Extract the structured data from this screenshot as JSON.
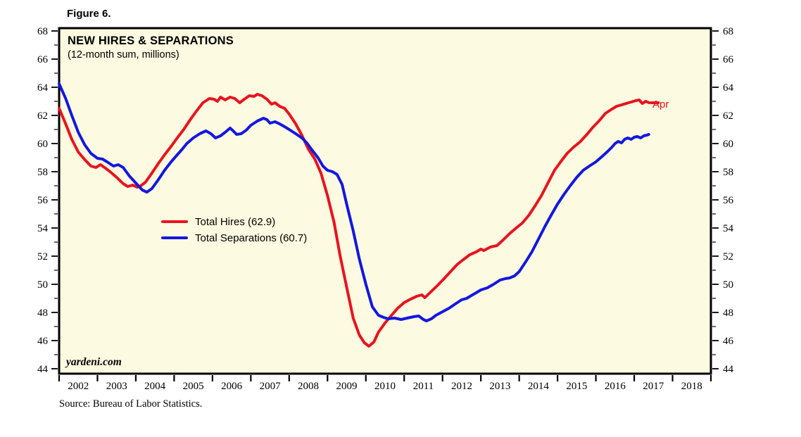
{
  "figure_label": "Figure 6.",
  "source_note": "Source: Bureau of Labor Statistics.",
  "chart_data": {
    "type": "line",
    "title": "NEW HIRES & SEPARATIONS",
    "subtitle": "(12-month sum, millions)",
    "watermark": "yardeni.com",
    "legend_position": "inside-left-middle",
    "grid": false,
    "colors": {
      "hires": "#E8141E",
      "separations": "#1418DE",
      "plot_background": "#FCFAE1",
      "frame": "#000000"
    },
    "x_axis": {
      "start": 2002,
      "end": 2019,
      "year_labels": [
        2002,
        2003,
        2004,
        2005,
        2006,
        2007,
        2008,
        2009,
        2010,
        2011,
        2012,
        2013,
        2014,
        2015,
        2016,
        2017,
        2018
      ]
    },
    "y_axis": {
      "min": 44,
      "max": 68,
      "major_step": 2,
      "minor_step": 1,
      "label_values": [
        68,
        66,
        64,
        62,
        60,
        58,
        56,
        54,
        52,
        50,
        48,
        46,
        44
      ]
    },
    "legend": [
      {
        "label": "Total Hires (62.9)",
        "color": "#E8141E"
      },
      {
        "label": "Total Separations (60.7)",
        "color": "#1418DE"
      }
    ],
    "annotations": [
      {
        "text": "Apr",
        "series": "Total Hires",
        "position": "line-end"
      }
    ],
    "latest_values": {
      "total_hires": 62.9,
      "total_separations": 60.7
    },
    "series": [
      {
        "name": "Total Hires",
        "color": "#E8141E",
        "points": [
          [
            2002.0,
            62.5
          ],
          [
            2002.17,
            61.4
          ],
          [
            2002.33,
            60.3
          ],
          [
            2002.5,
            59.4
          ],
          [
            2002.67,
            58.85
          ],
          [
            2002.83,
            58.4
          ],
          [
            2002.96,
            58.3
          ],
          [
            2003.08,
            58.5
          ],
          [
            2003.21,
            58.25
          ],
          [
            2003.33,
            58.0
          ],
          [
            2003.5,
            57.6
          ],
          [
            2003.67,
            57.15
          ],
          [
            2003.79,
            56.95
          ],
          [
            2003.92,
            57.05
          ],
          [
            2004.04,
            56.9
          ],
          [
            2004.13,
            57.0
          ],
          [
            2004.25,
            57.25
          ],
          [
            2004.42,
            57.9
          ],
          [
            2004.58,
            58.55
          ],
          [
            2004.75,
            59.2
          ],
          [
            2004.92,
            59.8
          ],
          [
            2005.08,
            60.4
          ],
          [
            2005.25,
            61.0
          ],
          [
            2005.42,
            61.7
          ],
          [
            2005.58,
            62.3
          ],
          [
            2005.75,
            62.9
          ],
          [
            2005.92,
            63.2
          ],
          [
            2006.04,
            63.15
          ],
          [
            2006.13,
            63.0
          ],
          [
            2006.21,
            63.3
          ],
          [
            2006.33,
            63.1
          ],
          [
            2006.46,
            63.3
          ],
          [
            2006.58,
            63.2
          ],
          [
            2006.71,
            62.9
          ],
          [
            2006.83,
            63.15
          ],
          [
            2006.96,
            63.4
          ],
          [
            2007.08,
            63.35
          ],
          [
            2007.17,
            63.5
          ],
          [
            2007.29,
            63.4
          ],
          [
            2007.42,
            63.15
          ],
          [
            2007.54,
            62.8
          ],
          [
            2007.63,
            62.9
          ],
          [
            2007.75,
            62.65
          ],
          [
            2007.88,
            62.5
          ],
          [
            2008.0,
            62.1
          ],
          [
            2008.17,
            61.4
          ],
          [
            2008.33,
            60.6
          ],
          [
            2008.5,
            59.6
          ],
          [
            2008.67,
            58.9
          ],
          [
            2008.83,
            57.9
          ],
          [
            2009.0,
            56.3
          ],
          [
            2009.17,
            54.4
          ],
          [
            2009.33,
            52.0
          ],
          [
            2009.5,
            49.8
          ],
          [
            2009.67,
            47.6
          ],
          [
            2009.83,
            46.4
          ],
          [
            2009.96,
            45.85
          ],
          [
            2010.08,
            45.6
          ],
          [
            2010.21,
            45.9
          ],
          [
            2010.33,
            46.6
          ],
          [
            2010.5,
            47.25
          ],
          [
            2010.67,
            47.8
          ],
          [
            2010.83,
            48.3
          ],
          [
            2011.0,
            48.7
          ],
          [
            2011.17,
            48.95
          ],
          [
            2011.33,
            49.15
          ],
          [
            2011.46,
            49.25
          ],
          [
            2011.54,
            49.05
          ],
          [
            2011.71,
            49.5
          ],
          [
            2011.88,
            49.95
          ],
          [
            2012.04,
            50.4
          ],
          [
            2012.21,
            50.9
          ],
          [
            2012.38,
            51.4
          ],
          [
            2012.54,
            51.75
          ],
          [
            2012.71,
            52.1
          ],
          [
            2012.88,
            52.3
          ],
          [
            2013.0,
            52.5
          ],
          [
            2013.08,
            52.4
          ],
          [
            2013.25,
            52.65
          ],
          [
            2013.42,
            52.75
          ],
          [
            2013.58,
            53.15
          ],
          [
            2013.75,
            53.6
          ],
          [
            2013.92,
            54.0
          ],
          [
            2014.08,
            54.35
          ],
          [
            2014.25,
            54.9
          ],
          [
            2014.42,
            55.6
          ],
          [
            2014.58,
            56.3
          ],
          [
            2014.75,
            57.2
          ],
          [
            2014.92,
            58.1
          ],
          [
            2015.08,
            58.7
          ],
          [
            2015.25,
            59.3
          ],
          [
            2015.42,
            59.75
          ],
          [
            2015.58,
            60.1
          ],
          [
            2015.75,
            60.6
          ],
          [
            2015.92,
            61.15
          ],
          [
            2016.08,
            61.6
          ],
          [
            2016.25,
            62.15
          ],
          [
            2016.42,
            62.45
          ],
          [
            2016.54,
            62.65
          ],
          [
            2016.67,
            62.75
          ],
          [
            2016.79,
            62.85
          ],
          [
            2016.92,
            62.95
          ],
          [
            2017.04,
            63.05
          ],
          [
            2017.13,
            63.1
          ],
          [
            2017.21,
            62.85
          ],
          [
            2017.3,
            63.0
          ],
          [
            2017.39,
            62.9
          ]
        ]
      },
      {
        "name": "Total Separations",
        "color": "#1418DE",
        "points": [
          [
            2002.0,
            64.25
          ],
          [
            2002.17,
            63.2
          ],
          [
            2002.33,
            62.0
          ],
          [
            2002.5,
            60.8
          ],
          [
            2002.67,
            59.9
          ],
          [
            2002.83,
            59.3
          ],
          [
            2003.0,
            58.95
          ],
          [
            2003.13,
            58.9
          ],
          [
            2003.25,
            58.7
          ],
          [
            2003.42,
            58.4
          ],
          [
            2003.54,
            58.5
          ],
          [
            2003.67,
            58.3
          ],
          [
            2003.83,
            57.7
          ],
          [
            2004.0,
            57.2
          ],
          [
            2004.17,
            56.7
          ],
          [
            2004.29,
            56.55
          ],
          [
            2004.42,
            56.8
          ],
          [
            2004.58,
            57.4
          ],
          [
            2004.75,
            58.1
          ],
          [
            2004.92,
            58.7
          ],
          [
            2005.08,
            59.2
          ],
          [
            2005.21,
            59.6
          ],
          [
            2005.33,
            60.0
          ],
          [
            2005.5,
            60.4
          ],
          [
            2005.67,
            60.7
          ],
          [
            2005.83,
            60.9
          ],
          [
            2005.96,
            60.7
          ],
          [
            2006.08,
            60.4
          ],
          [
            2006.21,
            60.55
          ],
          [
            2006.33,
            60.8
          ],
          [
            2006.46,
            61.1
          ],
          [
            2006.54,
            60.9
          ],
          [
            2006.63,
            60.65
          ],
          [
            2006.75,
            60.7
          ],
          [
            2006.88,
            60.95
          ],
          [
            2007.0,
            61.3
          ],
          [
            2007.17,
            61.6
          ],
          [
            2007.33,
            61.8
          ],
          [
            2007.42,
            61.7
          ],
          [
            2007.5,
            61.45
          ],
          [
            2007.63,
            61.55
          ],
          [
            2007.75,
            61.4
          ],
          [
            2007.88,
            61.2
          ],
          [
            2008.0,
            61.0
          ],
          [
            2008.17,
            60.7
          ],
          [
            2008.33,
            60.4
          ],
          [
            2008.46,
            60.05
          ],
          [
            2008.58,
            59.6
          ],
          [
            2008.75,
            59.0
          ],
          [
            2008.88,
            58.4
          ],
          [
            2009.0,
            58.1
          ],
          [
            2009.13,
            58.0
          ],
          [
            2009.25,
            57.8
          ],
          [
            2009.38,
            57.1
          ],
          [
            2009.5,
            55.7
          ],
          [
            2009.67,
            53.8
          ],
          [
            2009.83,
            51.8
          ],
          [
            2010.0,
            50.0
          ],
          [
            2010.17,
            48.4
          ],
          [
            2010.33,
            47.8
          ],
          [
            2010.46,
            47.65
          ],
          [
            2010.58,
            47.55
          ],
          [
            2010.75,
            47.6
          ],
          [
            2010.92,
            47.5
          ],
          [
            2011.08,
            47.6
          ],
          [
            2011.25,
            47.7
          ],
          [
            2011.38,
            47.75
          ],
          [
            2011.5,
            47.5
          ],
          [
            2011.58,
            47.4
          ],
          [
            2011.71,
            47.55
          ],
          [
            2011.83,
            47.8
          ],
          [
            2012.0,
            48.05
          ],
          [
            2012.17,
            48.3
          ],
          [
            2012.33,
            48.6
          ],
          [
            2012.5,
            48.9
          ],
          [
            2012.63,
            49.0
          ],
          [
            2012.75,
            49.2
          ],
          [
            2012.88,
            49.4
          ],
          [
            2013.0,
            49.6
          ],
          [
            2013.17,
            49.75
          ],
          [
            2013.33,
            50.0
          ],
          [
            2013.5,
            50.3
          ],
          [
            2013.63,
            50.4
          ],
          [
            2013.75,
            50.45
          ],
          [
            2013.88,
            50.6
          ],
          [
            2014.0,
            50.9
          ],
          [
            2014.17,
            51.6
          ],
          [
            2014.33,
            52.3
          ],
          [
            2014.5,
            53.2
          ],
          [
            2014.67,
            54.1
          ],
          [
            2014.83,
            54.9
          ],
          [
            2015.0,
            55.7
          ],
          [
            2015.17,
            56.4
          ],
          [
            2015.33,
            57.0
          ],
          [
            2015.5,
            57.6
          ],
          [
            2015.67,
            58.1
          ],
          [
            2015.83,
            58.4
          ],
          [
            2016.0,
            58.7
          ],
          [
            2016.17,
            59.1
          ],
          [
            2016.29,
            59.4
          ],
          [
            2016.42,
            59.75
          ],
          [
            2016.5,
            60.0
          ],
          [
            2016.58,
            60.15
          ],
          [
            2016.67,
            60.05
          ],
          [
            2016.75,
            60.3
          ],
          [
            2016.83,
            60.4
          ],
          [
            2016.92,
            60.3
          ],
          [
            2017.0,
            60.45
          ],
          [
            2017.08,
            60.5
          ],
          [
            2017.17,
            60.4
          ],
          [
            2017.25,
            60.55
          ],
          [
            2017.33,
            60.6
          ],
          [
            2017.38,
            60.65
          ]
        ]
      }
    ]
  }
}
